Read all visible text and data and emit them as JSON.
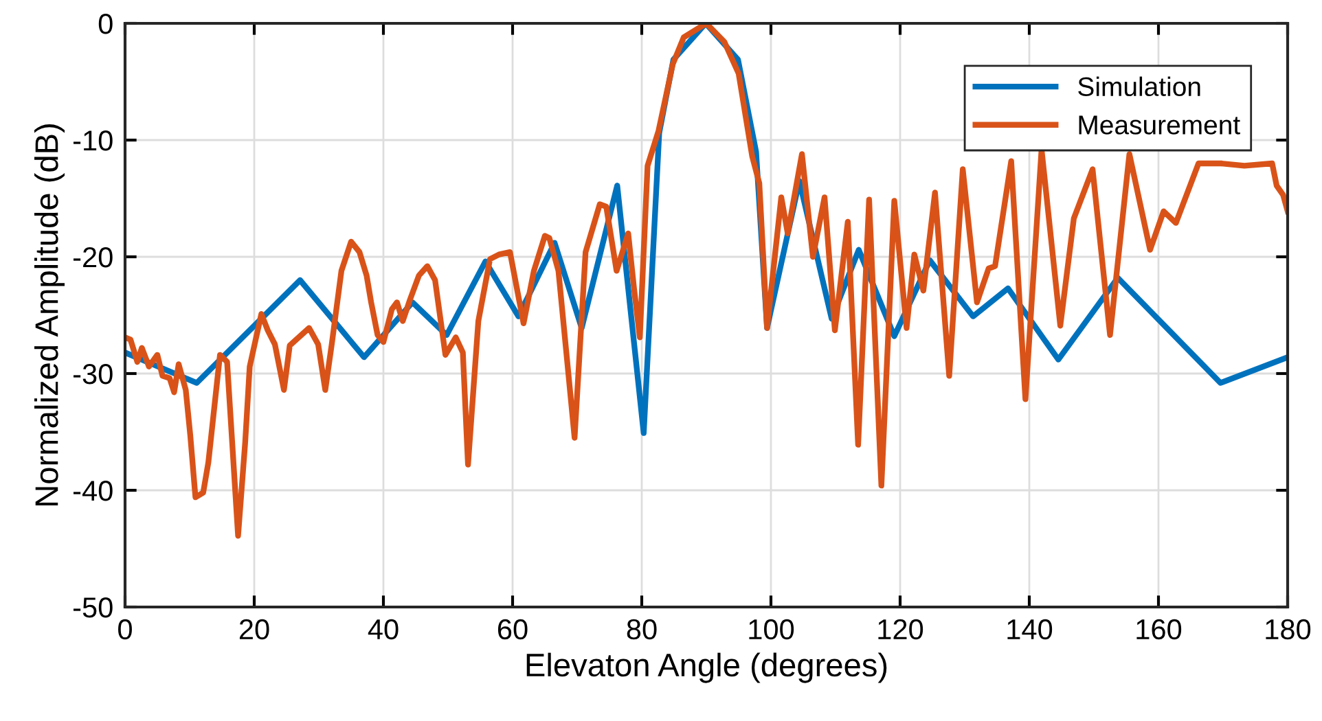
{
  "chart_data": {
    "type": "line",
    "xlabel": "Elevaton Angle (degrees)",
    "ylabel": "Normalized Amplitude (dB)",
    "xlim": [
      0,
      180
    ],
    "xticks": [
      0,
      20,
      40,
      60,
      80,
      100,
      120,
      140,
      160,
      180
    ],
    "ylim": [
      -50,
      0
    ],
    "yticks": [
      -50,
      -40,
      -30,
      -20,
      -10,
      0
    ],
    "grid": true,
    "legend": "top right",
    "marker": "none",
    "line_style": "solid",
    "series": [
      {
        "name": "Simulation",
        "color": "#0072bd",
        "x": [
          0,
          11.1,
          27.1,
          37,
          44.5,
          49.8,
          55.8,
          60.9,
          66.5,
          70.7,
          76.2,
          80.3,
          82.7,
          84.9,
          89.9,
          94.9,
          97.7,
          99.4,
          104.4,
          109.4,
          113.6,
          119.1,
          124.6,
          131.3,
          136.7,
          144.5,
          153.7,
          169.6,
          180
        ],
        "values": [
          -28.2,
          -30.8,
          -22,
          -28.6,
          -23.9,
          -26.7,
          -20.4,
          -25.1,
          -18.8,
          -26.1,
          -13.9,
          -35.1,
          -9.4,
          -3.1,
          0,
          -3.1,
          -11,
          -26.1,
          -13.5,
          -25.3,
          -19.4,
          -26.8,
          -20.3,
          -25.1,
          -22.7,
          -28.8,
          -21.8,
          -30.8,
          -28.6
        ]
      },
      {
        "name": "Measurement",
        "color": "#d95319",
        "x": [
          0,
          0.85,
          1.9,
          2.6,
          3.7,
          5,
          5.8,
          6.9,
          7.6,
          8.3,
          9.4,
          10.1,
          10.9,
          12.1,
          12.9,
          14.7,
          15.8,
          17.5,
          18.6,
          19.3,
          21.1,
          22.1,
          23.2,
          24.6,
          25.5,
          28.5,
          29.9,
          31,
          32,
          33.5,
          35,
          36.3,
          37.4,
          38.1,
          39.1,
          40,
          41.3,
          42.1,
          43,
          44.1,
          45.5,
          46.8,
          48,
          49.6,
          51.2,
          52.3,
          53.1,
          54.7,
          56.5,
          57.9,
          59.6,
          61.7,
          63.3,
          65,
          65.7,
          67.1,
          69.6,
          71.3,
          73.5,
          74.5,
          76.1,
          77.9,
          78.8,
          79.7,
          80.9,
          82.6,
          84.8,
          86.5,
          90,
          92.8,
          95,
          97.1,
          98.2,
          99.4,
          101.6,
          102.6,
          104.8,
          106.5,
          108.3,
          109.9,
          111.9,
          113.5,
          115.2,
          117.1,
          119.1,
          121,
          122.2,
          123.6,
          125.4,
          127.6,
          129.7,
          131.9,
          133.7,
          134.7,
          137.2,
          139.4,
          141.9,
          144.8,
          146.9,
          149.8,
          152.5,
          155.5,
          158.7,
          160.8,
          162.7,
          166.2,
          169.7,
          173.3,
          177.6,
          178.3,
          179.3,
          180
        ],
        "values": [
          -26.9,
          -27.1,
          -29,
          -27.8,
          -29.4,
          -28.4,
          -30.2,
          -30.4,
          -31.6,
          -29.2,
          -31.4,
          -35.3,
          -40.6,
          -40.2,
          -37.6,
          -28.4,
          -29,
          -43.9,
          -35.9,
          -29.4,
          -24.9,
          -26.3,
          -27.5,
          -31.4,
          -27.6,
          -26.1,
          -27.5,
          -31.4,
          -27.5,
          -21.2,
          -18.7,
          -19.6,
          -21.6,
          -23.9,
          -26.7,
          -27.3,
          -24.5,
          -23.9,
          -25.5,
          -23.7,
          -21.6,
          -20.8,
          -22,
          -28.4,
          -26.9,
          -28.2,
          -37.8,
          -25.5,
          -20.2,
          -19.8,
          -19.6,
          -25.7,
          -21.2,
          -18.2,
          -18.4,
          -21.2,
          -35.5,
          -19.6,
          -15.5,
          -15.7,
          -21.2,
          -18,
          -22.7,
          -26.9,
          -12.2,
          -9.2,
          -3.5,
          -1.2,
          0,
          -1.6,
          -4.3,
          -11.4,
          -13.7,
          -26.1,
          -14.9,
          -18,
          -11.2,
          -20,
          -14.9,
          -26.3,
          -17,
          -36.1,
          -15.1,
          -39.6,
          -15.2,
          -26.1,
          -19.8,
          -22.9,
          -14.5,
          -30.2,
          -12.5,
          -23.9,
          -21,
          -20.8,
          -11.8,
          -32.2,
          -10.8,
          -25.9,
          -16.7,
          -12.5,
          -26.7,
          -11.2,
          -19.4,
          -16.1,
          -17.1,
          -12,
          -12,
          -12.2,
          -12,
          -13.9,
          -14.7,
          -16.1
        ]
      }
    ]
  }
}
